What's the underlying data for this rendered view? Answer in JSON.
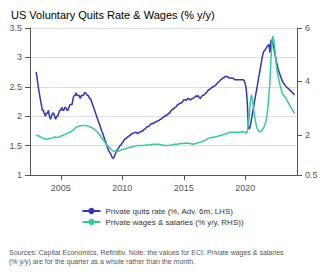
{
  "chart_data": {
    "type": "line",
    "title": "US Voluntary Quits Rate & Wages (% y/y)",
    "annotations": [
      "Sources: Capital Economics, Refinitiv. Note: the values for ECI: Private wages & salaries\n(% y/y) are for the quarter as a whole rather than the month."
    ],
    "xlim": [
      2002.5,
      2024.2
    ],
    "xticks": [
      2005,
      2010,
      2015,
      2020
    ],
    "ylim": [
      1.0,
      3.5
    ],
    "yticks": [
      1.0,
      1.5,
      2.0,
      2.5,
      3.0,
      3.5
    ],
    "y2lim": [
      0.5,
      6.0
    ],
    "y2ticks": [
      0.5,
      2.0,
      4.0,
      6.0
    ],
    "grid": true,
    "legend": "bottom",
    "series": [
      {
        "name": "Private quits rate (%, Adv. 6m, LHS)",
        "color": "#3333bb",
        "axis": "y",
        "x": [
          2003.0,
          2003.08,
          2003.17,
          2003.25,
          2003.33,
          2003.42,
          2003.5,
          2003.58,
          2003.67,
          2003.75,
          2003.83,
          2003.92,
          2004.0,
          2004.08,
          2004.17,
          2004.25,
          2004.33,
          2004.42,
          2004.5,
          2004.58,
          2004.67,
          2004.75,
          2004.83,
          2004.92,
          2005.0,
          2005.08,
          2005.17,
          2005.25,
          2005.33,
          2005.42,
          2005.5,
          2005.58,
          2005.67,
          2005.75,
          2005.83,
          2005.92,
          2006.0,
          2006.08,
          2006.17,
          2006.25,
          2006.33,
          2006.42,
          2006.5,
          2006.58,
          2006.67,
          2006.75,
          2006.83,
          2006.92,
          2007.0,
          2007.08,
          2007.17,
          2007.25,
          2007.33,
          2007.42,
          2007.5,
          2007.58,
          2007.67,
          2007.75,
          2007.83,
          2007.92,
          2008.0,
          2008.08,
          2008.17,
          2008.25,
          2008.33,
          2008.42,
          2008.5,
          2008.58,
          2008.67,
          2008.75,
          2008.83,
          2008.92,
          2009.0,
          2009.08,
          2009.17,
          2009.25,
          2009.33,
          2009.42,
          2009.5,
          2009.58,
          2009.67,
          2009.75,
          2009.83,
          2009.92,
          2010.0,
          2010.08,
          2010.17,
          2010.25,
          2010.33,
          2010.42,
          2010.5,
          2010.58,
          2010.67,
          2010.75,
          2010.83,
          2010.92,
          2011.0,
          2011.08,
          2011.17,
          2011.25,
          2011.33,
          2011.42,
          2011.5,
          2011.58,
          2011.67,
          2011.75,
          2011.83,
          2011.92,
          2012.0,
          2012.08,
          2012.17,
          2012.25,
          2012.33,
          2012.42,
          2012.5,
          2012.58,
          2012.67,
          2012.75,
          2012.83,
          2012.92,
          2013.0,
          2013.08,
          2013.17,
          2013.25,
          2013.33,
          2013.42,
          2013.5,
          2013.58,
          2013.67,
          2013.75,
          2013.83,
          2013.92,
          2014.0,
          2014.08,
          2014.17,
          2014.25,
          2014.33,
          2014.42,
          2014.5,
          2014.58,
          2014.67,
          2014.75,
          2014.83,
          2014.92,
          2015.0,
          2015.08,
          2015.17,
          2015.25,
          2015.33,
          2015.42,
          2015.5,
          2015.58,
          2015.67,
          2015.75,
          2015.83,
          2015.92,
          2016.0,
          2016.08,
          2016.17,
          2016.25,
          2016.33,
          2016.42,
          2016.5,
          2016.58,
          2016.67,
          2016.75,
          2016.83,
          2016.92,
          2017.0,
          2017.08,
          2017.17,
          2017.25,
          2017.33,
          2017.42,
          2017.5,
          2017.58,
          2017.67,
          2017.75,
          2017.83,
          2017.92,
          2018.0,
          2018.08,
          2018.17,
          2018.25,
          2018.33,
          2018.42,
          2018.5,
          2018.58,
          2018.67,
          2018.75,
          2018.83,
          2018.92,
          2019.0,
          2019.08,
          2019.17,
          2019.25,
          2019.33,
          2019.42,
          2019.5,
          2019.58,
          2019.67,
          2019.75,
          2019.83,
          2019.92,
          2020.0,
          2020.08,
          2020.17,
          2020.25,
          2020.33,
          2020.42,
          2020.5,
          2020.58,
          2020.67,
          2020.75,
          2020.83,
          2020.92,
          2021.0,
          2021.08,
          2021.17,
          2021.25,
          2021.33,
          2021.42,
          2021.5,
          2021.58,
          2021.67,
          2021.75,
          2021.83,
          2021.92,
          2022.0,
          2022.08,
          2022.17,
          2022.25,
          2022.33,
          2022.42,
          2022.5,
          2022.58,
          2022.67,
          2022.75,
          2022.83,
          2022.92,
          2023.0,
          2023.08,
          2023.17,
          2023.25,
          2023.33,
          2023.42,
          2023.5,
          2023.58,
          2023.67,
          2023.75,
          2023.83,
          2023.92,
          2024.0
        ],
        "values": [
          2.75,
          2.65,
          2.5,
          2.4,
          2.3,
          2.2,
          2.1,
          2.1,
          2.05,
          2.0,
          2.05,
          2.05,
          2.1,
          2.0,
          1.95,
          2.0,
          2.05,
          2.05,
          2.0,
          1.95,
          2.0,
          2.0,
          2.05,
          2.1,
          2.1,
          2.15,
          2.1,
          2.1,
          2.15,
          2.15,
          2.1,
          2.1,
          2.15,
          2.2,
          2.2,
          2.2,
          2.3,
          2.35,
          2.35,
          2.4,
          2.35,
          2.35,
          2.35,
          2.3,
          2.35,
          2.35,
          2.35,
          2.4,
          2.4,
          2.38,
          2.35,
          2.35,
          2.3,
          2.3,
          2.25,
          2.2,
          2.15,
          2.1,
          2.05,
          2.0,
          1.95,
          1.9,
          1.85,
          1.8,
          1.75,
          1.7,
          1.65,
          1.6,
          1.55,
          1.5,
          1.45,
          1.4,
          1.38,
          1.35,
          1.3,
          1.28,
          1.3,
          1.35,
          1.4,
          1.42,
          1.45,
          1.48,
          1.5,
          1.52,
          1.55,
          1.57,
          1.6,
          1.62,
          1.62,
          1.65,
          1.65,
          1.67,
          1.68,
          1.7,
          1.7,
          1.72,
          1.72,
          1.73,
          1.72,
          1.7,
          1.72,
          1.73,
          1.73,
          1.75,
          1.75,
          1.77,
          1.78,
          1.8,
          1.82,
          1.82,
          1.83,
          1.85,
          1.87,
          1.87,
          1.88,
          1.88,
          1.9,
          1.9,
          1.92,
          1.92,
          1.93,
          1.95,
          1.95,
          1.97,
          1.98,
          2.0,
          2.0,
          2.02,
          2.02,
          2.05,
          2.05,
          2.08,
          2.1,
          2.12,
          2.12,
          2.15,
          2.15,
          2.17,
          2.2,
          2.2,
          2.22,
          2.22,
          2.23,
          2.25,
          2.28,
          2.28,
          2.27,
          2.28,
          2.3,
          2.3,
          2.28,
          2.28,
          2.3,
          2.3,
          2.32,
          2.33,
          2.35,
          2.33,
          2.35,
          2.32,
          2.3,
          2.33,
          2.35,
          2.35,
          2.37,
          2.38,
          2.4,
          2.42,
          2.45,
          2.45,
          2.47,
          2.48,
          2.5,
          2.5,
          2.52,
          2.52,
          2.55,
          2.57,
          2.58,
          2.6,
          2.62,
          2.63,
          2.65,
          2.65,
          2.67,
          2.68,
          2.67,
          2.67,
          2.65,
          2.65,
          2.65,
          2.65,
          2.65,
          2.63,
          2.62,
          2.62,
          2.62,
          2.62,
          2.62,
          2.62,
          2.62,
          2.62,
          2.62,
          2.6,
          2.55,
          2.45,
          2.2,
          1.8,
          1.78,
          1.85,
          1.95,
          2.05,
          2.15,
          2.25,
          2.35,
          2.45,
          2.55,
          2.65,
          2.75,
          2.85,
          2.95,
          3.05,
          3.1,
          3.12,
          3.15,
          3.18,
          3.2,
          3.22,
          3.08,
          3.28,
          3.3,
          3.22,
          3.15,
          3.05,
          2.95,
          2.88,
          2.8,
          2.75,
          2.7,
          2.65,
          2.6,
          2.57,
          2.55,
          2.52,
          2.5,
          2.48,
          2.47,
          2.45,
          2.43,
          2.42,
          2.4,
          2.38,
          2.36
        ]
      },
      {
        "name": "Private wages & salaries (% y/y, RHS))",
        "color": "#33cc99",
        "axis": "y2",
        "x": [
          2003.0,
          2003.25,
          2003.5,
          2003.75,
          2004.0,
          2004.25,
          2004.5,
          2004.75,
          2005.0,
          2005.25,
          2005.5,
          2005.75,
          2006.0,
          2006.25,
          2006.5,
          2006.75,
          2007.0,
          2007.25,
          2007.5,
          2007.75,
          2008.0,
          2008.25,
          2008.5,
          2008.75,
          2009.0,
          2009.25,
          2009.5,
          2009.75,
          2010.0,
          2010.25,
          2010.5,
          2010.75,
          2011.0,
          2011.25,
          2011.5,
          2011.75,
          2012.0,
          2012.25,
          2012.5,
          2012.75,
          2013.0,
          2013.25,
          2013.5,
          2013.75,
          2014.0,
          2014.25,
          2014.5,
          2014.75,
          2015.0,
          2015.25,
          2015.5,
          2015.75,
          2016.0,
          2016.25,
          2016.5,
          2016.75,
          2017.0,
          2017.25,
          2017.5,
          2017.75,
          2018.0,
          2018.25,
          2018.5,
          2018.75,
          2019.0,
          2019.25,
          2019.5,
          2019.75,
          2020.0,
          2020.08,
          2020.17,
          2020.25,
          2020.33,
          2020.42,
          2020.5,
          2020.58,
          2020.67,
          2020.75,
          2020.83,
          2020.92,
          2021.0,
          2021.08,
          2021.17,
          2021.25,
          2021.33,
          2021.42,
          2021.5,
          2021.58,
          2021.67,
          2021.75,
          2021.83,
          2021.92,
          2022.0,
          2022.08,
          2022.17,
          2022.25,
          2022.33,
          2022.42,
          2022.5,
          2022.58,
          2022.67,
          2022.75,
          2022.83,
          2022.92,
          2023.0,
          2023.25,
          2023.5,
          2023.75,
          2024.0
        ],
        "values": [
          2.0,
          1.95,
          1.88,
          1.85,
          1.85,
          1.88,
          1.92,
          1.9,
          1.95,
          2.0,
          2.05,
          2.1,
          2.18,
          2.28,
          2.33,
          2.35,
          2.35,
          2.32,
          2.28,
          2.2,
          2.1,
          1.95,
          1.78,
          1.62,
          1.5,
          1.4,
          1.38,
          1.4,
          1.45,
          1.48,
          1.52,
          1.55,
          1.58,
          1.6,
          1.6,
          1.6,
          1.62,
          1.63,
          1.65,
          1.65,
          1.65,
          1.62,
          1.6,
          1.6,
          1.62,
          1.65,
          1.65,
          1.68,
          1.68,
          1.7,
          1.68,
          1.65,
          1.68,
          1.72,
          1.75,
          1.8,
          1.88,
          1.9,
          1.92,
          1.95,
          1.98,
          2.02,
          2.05,
          2.1,
          2.1,
          2.1,
          2.1,
          2.12,
          2.1,
          2.05,
          2.15,
          2.4,
          2.8,
          3.3,
          3.5,
          3.3,
          3.0,
          2.7,
          2.5,
          2.3,
          2.2,
          2.15,
          2.12,
          2.12,
          2.15,
          2.2,
          2.28,
          2.38,
          2.5,
          2.7,
          3.0,
          3.5,
          4.0,
          4.8,
          5.5,
          5.7,
          5.5,
          5.1,
          4.7,
          4.4,
          4.2,
          4.0,
          3.85,
          3.7,
          3.55,
          3.4,
          3.2,
          3.0,
          2.8
        ]
      }
    ]
  }
}
